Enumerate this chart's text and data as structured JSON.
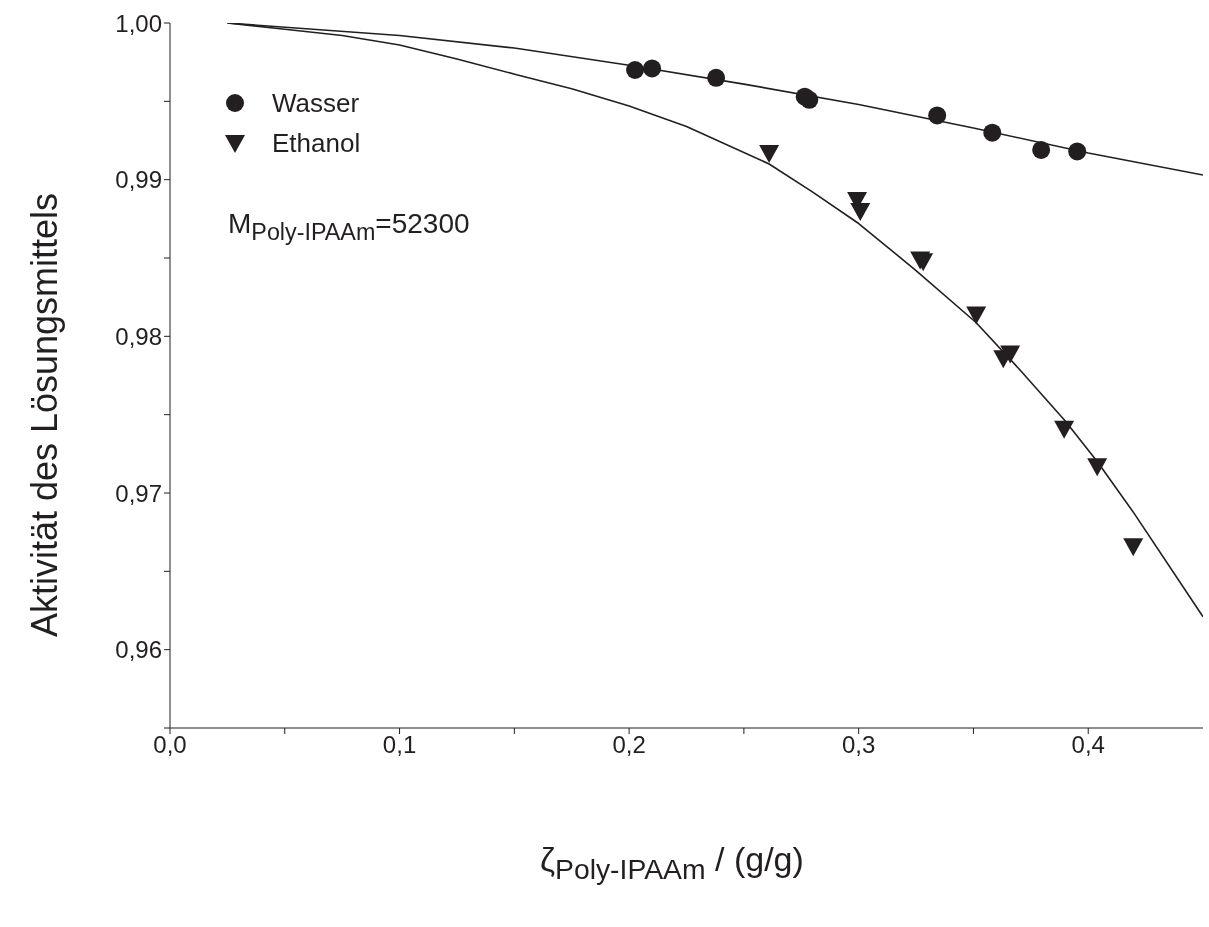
{
  "chart_data": {
    "type": "scatter",
    "xlabel": "ζ$_{Poly-IPAAm}$ / (g/g)",
    "ylabel": "Aktivität des Lösungsmittels",
    "annotations": [
      "M$_{Poly-IPAAm}$=52300"
    ],
    "xlim": [
      0,
      0.45
    ],
    "ylim": [
      0.955,
      1.0
    ],
    "xticks": [
      {
        "value": 0,
        "label": "0,0"
      },
      {
        "value": 0.05,
        "label": null
      },
      {
        "value": 0.1,
        "label": "0,1"
      },
      {
        "value": 0.15,
        "label": null
      },
      {
        "value": 0.2,
        "label": "0,2"
      },
      {
        "value": 0.25,
        "label": null
      },
      {
        "value": 0.3,
        "label": "0,3"
      },
      {
        "value": 0.35,
        "label": null
      },
      {
        "value": 0.4,
        "label": "0,4"
      }
    ],
    "yticks": [
      {
        "value": 0.955,
        "label": null
      },
      {
        "value": 0.96,
        "label": "0,96"
      },
      {
        "value": 0.965,
        "label": null
      },
      {
        "value": 0.97,
        "label": "0,97"
      },
      {
        "value": 0.975,
        "label": null
      },
      {
        "value": 0.98,
        "label": "0,98"
      },
      {
        "value": 0.985,
        "label": null
      },
      {
        "value": 0.99,
        "label": "0,99"
      },
      {
        "value": 0.995,
        "label": null
      },
      {
        "value": 1.0,
        "label": "1,00"
      }
    ],
    "legend": "top left",
    "series": [
      {
        "name": "Wasser",
        "type": "scatter",
        "marker": "circle",
        "color": "#231f20",
        "x": [
          0.2026,
          0.21,
          0.2379,
          0.2765,
          0.2785,
          0.3342,
          0.3582,
          0.3795,
          0.3952
        ],
        "values": [
          0.997,
          0.9971,
          0.9965,
          0.9953,
          0.9951,
          0.9941,
          0.993,
          0.9919,
          0.9918
        ]
      },
      {
        "name": "Ethanol",
        "type": "scatter",
        "marker": "triangle",
        "color": "#231f20",
        "x": [
          0.261,
          0.2993,
          0.3007,
          0.3268,
          0.3281,
          0.3512,
          0.366,
          0.363,
          0.3895,
          0.4039,
          0.4196
        ],
        "values": [
          0.9917,
          0.9887,
          0.988,
          0.9849,
          0.9848,
          0.9814,
          0.9789,
          0.9786,
          0.9741,
          0.9717,
          0.9666
        ]
      },
      {
        "type": "line",
        "marker": "none",
        "line_style": "solid",
        "color": "#231f20",
        "x": [
          0.025,
          0.1,
          0.15,
          0.2,
          0.25,
          0.3,
          0.35,
          0.4,
          0.45
        ],
        "values": [
          1.0,
          0.9992,
          0.9984,
          0.9973,
          0.9961,
          0.9948,
          0.9933,
          0.9917,
          0.9903
        ]
      },
      {
        "type": "line",
        "marker": "none",
        "line_style": "solid",
        "color": "#231f20",
        "x": [
          0.025,
          0.05,
          0.075,
          0.1,
          0.125,
          0.151,
          0.175,
          0.2,
          0.225,
          0.261,
          0.28,
          0.3,
          0.325,
          0.351,
          0.37,
          0.39,
          0.404,
          0.42,
          0.45
        ],
        "values": [
          1.0,
          0.9996,
          0.9992,
          0.9986,
          0.9977,
          0.9967,
          0.9958,
          0.9947,
          0.9934,
          0.991,
          0.9892,
          0.9872,
          0.9842,
          0.9809,
          0.9779,
          0.9746,
          0.972,
          0.9687,
          0.9621
        ]
      }
    ]
  }
}
